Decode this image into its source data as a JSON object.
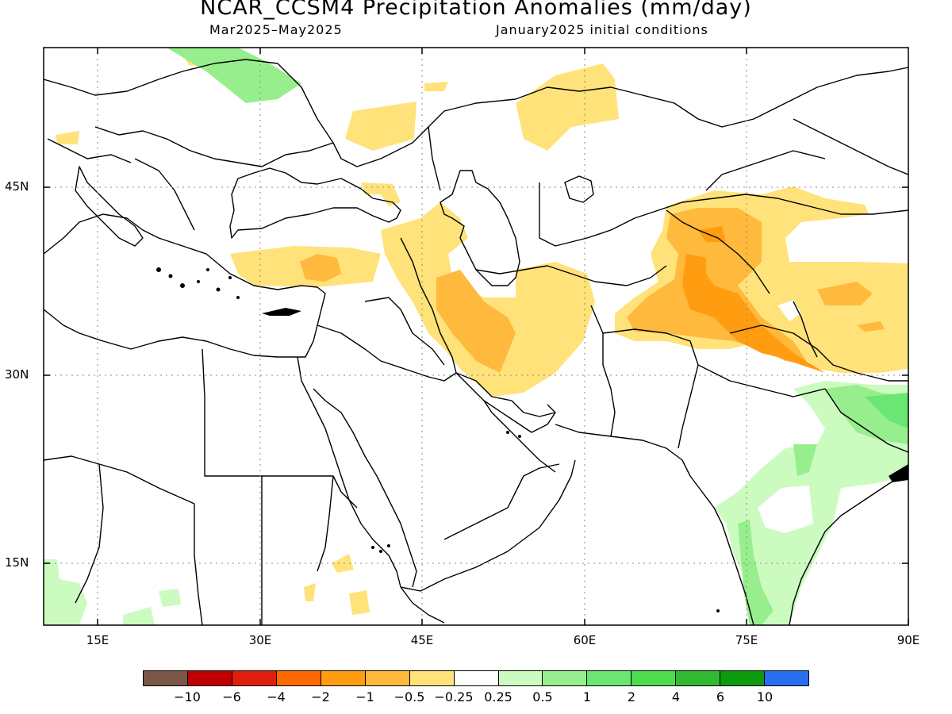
{
  "title": "NCAR_CCSM4 Precipitation Anomalies (mm/day)",
  "subtitle_left": "Mar2025–May2025",
  "subtitle_right": "January2025 initial conditions",
  "lat_labels": [
    "45N",
    "30N",
    "15N"
  ],
  "lon_labels": [
    "15E",
    "30E",
    "45E",
    "60E",
    "75E",
    "90E"
  ],
  "legend": {
    "colors": [
      "#7a5747",
      "#c00000",
      "#e11e0b",
      "#ff6a00",
      "#ff9c10",
      "#ffb93c",
      "#ffe27a",
      "#ffffff",
      "#ccfbc0",
      "#96ef8c",
      "#6ae672",
      "#4cdc4c",
      "#32b932",
      "#0c9b0c",
      "#2a6ef0"
    ],
    "labels": [
      "−10",
      "−6",
      "−4",
      "−2",
      "−1",
      "−0.5",
      "−0.25",
      "0.25",
      "0.5",
      "1",
      "2",
      "4",
      "6",
      "10"
    ]
  },
  "map": {
    "lon_range": [
      10,
      90
    ],
    "lat_range": [
      10,
      55
    ],
    "grid_lon": [
      15,
      30,
      45,
      60,
      75
    ],
    "grid_lat": [
      45,
      30,
      15
    ],
    "anomaly_colors": {
      "light_orange": "#ffe27a",
      "mid_orange": "#ffb93c",
      "orange": "#ff9c10",
      "light_green": "#ccfbc0",
      "green": "#96ef8c",
      "mid_green": "#6ae672"
    }
  }
}
